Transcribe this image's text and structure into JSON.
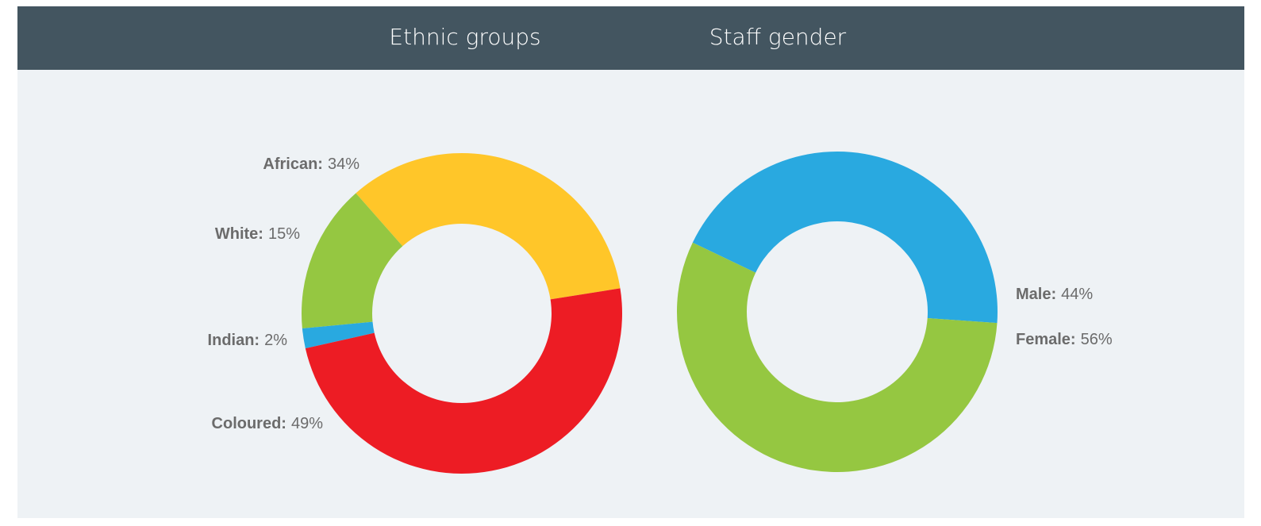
{
  "chart_data": [
    {
      "type": "pie",
      "title": "Ethnic groups",
      "categories": [
        "African:",
        "White:",
        "Indian:",
        "Coloured:"
      ],
      "values": [
        34,
        15,
        2,
        49
      ],
      "value_labels": [
        "34%",
        "15%",
        "2%",
        "49%"
      ],
      "colors": [
        "#ffc629",
        "#95c741",
        "#29a9e0",
        "#ed1c24"
      ]
    },
    {
      "type": "pie",
      "title": "Staff gender",
      "categories": [
        "Male:",
        "Female:"
      ],
      "values": [
        44,
        56
      ],
      "value_labels": [
        "44%",
        "56%"
      ],
      "colors": [
        "#29a9e0",
        "#95c741"
      ]
    }
  ]
}
